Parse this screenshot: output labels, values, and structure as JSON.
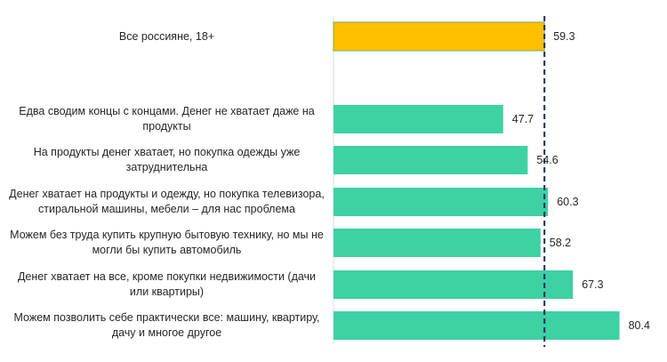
{
  "chart_data": {
    "type": "bar",
    "orientation": "horizontal",
    "title": "",
    "xlabel": "",
    "ylabel": "",
    "xlim": [
      0,
      100
    ],
    "reference_line": {
      "value": 59.3,
      "style": "dashed",
      "color": "#1f2a5c"
    },
    "categories": [
      "Все россияне, 18+",
      "Едва сводим концы с концами. Денег не хватает даже на продукты",
      "На продукты денег хватает, но покупка одежды уже затруднительна",
      "Денег хватает на продукты и одежду, но покупка телевизора, стиральной машины, мебели – для нас проблема",
      "Можем без труда купить крупную бытовую технику, но мы не могли бы купить автомобиль",
      "Денег хватает на все, кроме покупки недвижимости (дачи или квартиры)",
      "Можем позволить себе практически все: машину, квартиру, дачу и многое другое"
    ],
    "values": [
      59.3,
      47.7,
      54.6,
      60.3,
      58.2,
      67.3,
      80.4
    ],
    "value_labels": [
      "59.3",
      "47.7",
      "54.6",
      "60.3",
      "58.2",
      "67.3",
      "80.4"
    ],
    "colors": [
      "#ffc000",
      "#3dd1a4",
      "#3dd1a4",
      "#3dd1a4",
      "#3dd1a4",
      "#3dd1a4",
      "#3dd1a4"
    ],
    "grid": false,
    "legend": "none"
  }
}
